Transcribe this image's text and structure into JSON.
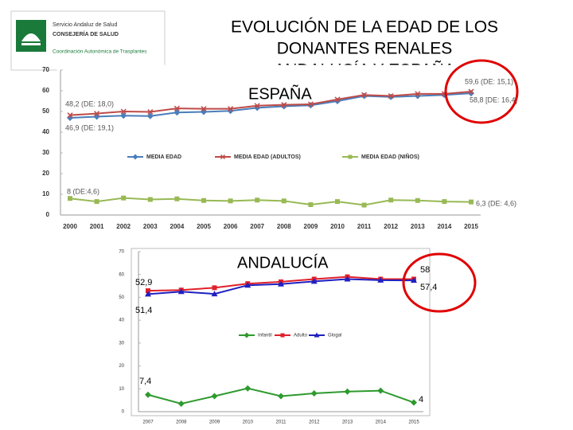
{
  "header": {
    "title_lines": [
      "EVOLUCIÓN DE LA EDAD DE LOS",
      "DONANTES RENALES",
      "ANDALUCÍA Y ESPAÑA"
    ]
  },
  "logo": {
    "lines": [
      "Servicio Andaluz de Salud",
      "CONSEJERÍA DE SALUD",
      "Coordinación Autonómica de Trasplantes"
    ]
  },
  "chart_data": [
    {
      "type": "line",
      "title": "ESPAÑA",
      "categories": [
        "2000",
        "2001",
        "2002",
        "2003",
        "2004",
        "2005",
        "2006",
        "2007",
        "2008",
        "2009",
        "2010",
        "2011",
        "2012",
        "2013",
        "2014",
        "2015"
      ],
      "ylim": [
        0,
        70
      ],
      "yticks": [
        0,
        10,
        20,
        30,
        40,
        50,
        60,
        70
      ],
      "grid": false,
      "series": [
        {
          "name": "MEDIA EDAD",
          "color": "#4a7ebb",
          "marker": "diamond",
          "values": [
            46.9,
            47.5,
            48,
            47.8,
            49.5,
            49.8,
            50.3,
            51.8,
            52.5,
            53,
            55,
            57.5,
            57,
            57.5,
            58,
            58.8
          ]
        },
        {
          "name": "MEDIA EDAD (ADULTOS)",
          "color": "#be4b48",
          "marker": "x",
          "values": [
            48.2,
            49,
            50,
            49.8,
            51.5,
            51.3,
            51.3,
            52.8,
            53.2,
            53.5,
            55.8,
            58,
            57.5,
            58.5,
            58.5,
            59.6
          ]
        },
        {
          "name": "MEDIA EDAD (NIÑOS)",
          "color": "#98b954",
          "marker": "square",
          "values": [
            8,
            6.5,
            8.2,
            7.5,
            7.8,
            7,
            6.8,
            7.2,
            6.8,
            5,
            6.5,
            4.8,
            7.2,
            7,
            6.5,
            6.3
          ]
        }
      ],
      "annotations": [
        "48,2 (DE: 18,0)",
        "46,9 (DE: 19,1)",
        "59,6 (DE: 15,1)",
        "58,8 [DE: 16,4]",
        "8 (DE:4,6)",
        "6,3 (DE: 4,6)"
      ]
    },
    {
      "type": "line",
      "title": "ANDALUCÍA",
      "categories": [
        "2007",
        "2008",
        "2009",
        "2010",
        "2011",
        "2012",
        "2013",
        "2014",
        "2015"
      ],
      "ylim": [
        0,
        70
      ],
      "yticks": [
        0,
        10,
        20,
        30,
        40,
        50,
        60,
        70
      ],
      "grid": false,
      "series": [
        {
          "name": "Infantil",
          "color": "#2e9a2e",
          "marker": "diamond",
          "values": [
            7.4,
            3.5,
            6.8,
            10.2,
            6.8,
            8,
            8.8,
            9.2,
            4
          ]
        },
        {
          "name": "Adulto",
          "color": "#e0202a",
          "marker": "square",
          "values": [
            52.9,
            53.2,
            54.2,
            56,
            56.8,
            58,
            59,
            58,
            58
          ]
        },
        {
          "name": "Glogal",
          "color": "#2020c0",
          "marker": "triangle",
          "values": [
            51.4,
            52.5,
            51.5,
            55.3,
            55.8,
            57,
            58,
            57.5,
            57.4
          ]
        }
      ],
      "annotations": [
        "52,9",
        "51,4",
        "58",
        "57,4",
        "7,4",
        "4"
      ]
    }
  ]
}
